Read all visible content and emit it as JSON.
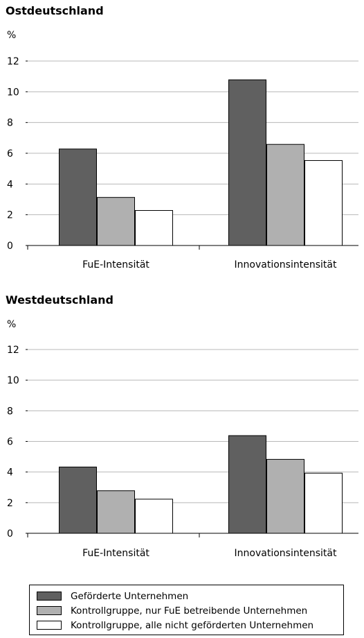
{
  "chart_data": [
    {
      "type": "bar",
      "title": "Ostdeutschland",
      "ylabel": "%",
      "ylim": [
        0,
        12
      ],
      "yticks": [
        0,
        2,
        4,
        6,
        8,
        10,
        12
      ],
      "grid": true,
      "categories": [
        "FuE-Intensität",
        "Innovationsintensität"
      ],
      "series": [
        {
          "name": "Geförderte Unternehmen",
          "color": "#606060",
          "values": [
            6.3,
            10.8
          ]
        },
        {
          "name": "Kontrollgruppe, nur FuE betreibende Unternehmen",
          "color": "#b0b0b0",
          "values": [
            3.15,
            6.6
          ]
        },
        {
          "name": "Kontrollgruppe, alle nicht geförderten Unternehmen",
          "color": "#ffffff",
          "values": [
            2.3,
            5.55
          ]
        }
      ]
    },
    {
      "type": "bar",
      "title": "Westdeutschland",
      "ylabel": "%",
      "ylim": [
        0,
        12
      ],
      "yticks": [
        0,
        2,
        4,
        6,
        8,
        10,
        12
      ],
      "grid": true,
      "categories": [
        "FuE-Intensität",
        "Innovationsintensität"
      ],
      "series": [
        {
          "name": "Geförderte Unternehmen",
          "color": "#606060",
          "values": [
            4.35,
            6.4
          ]
        },
        {
          "name": "Kontrollgruppe, nur FuE betreibende Unternehmen",
          "color": "#b0b0b0",
          "values": [
            2.8,
            4.85
          ]
        },
        {
          "name": "Kontrollgruppe, alle nicht geförderten Unternehmen",
          "color": "#ffffff",
          "values": [
            2.25,
            3.95
          ]
        }
      ]
    }
  ],
  "legend": {
    "placement": "bottom",
    "items": [
      {
        "label": "Geförderte Unternehmen",
        "color": "#606060"
      },
      {
        "label": "Kontrollgruppe, nur FuE betreibende Unternehmen",
        "color": "#b0b0b0"
      },
      {
        "label": "Kontrollgruppe, alle nicht geförderten Unternehmen",
        "color": "#ffffff"
      }
    ]
  }
}
